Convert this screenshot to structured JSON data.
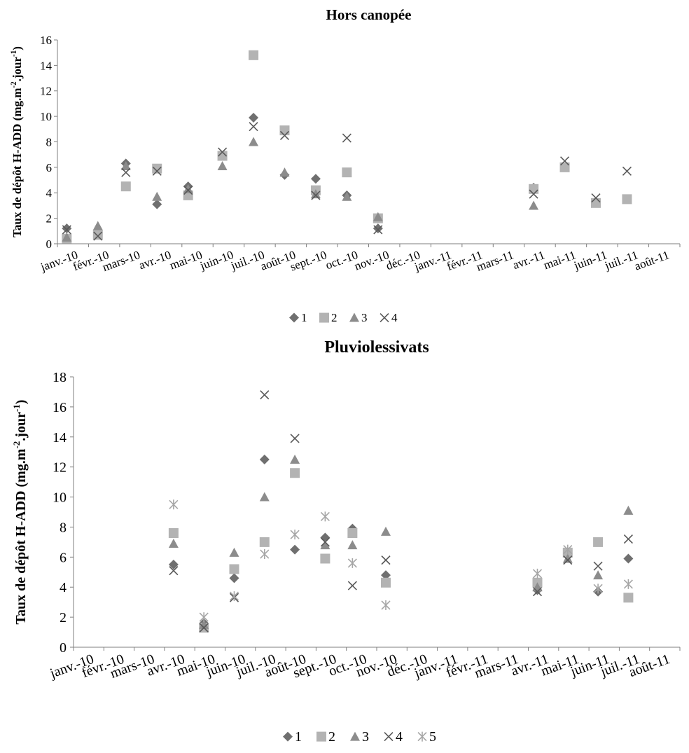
{
  "chart_data": [
    {
      "type": "scatter",
      "title": "Hors canopée",
      "ylabel": "Taux de dépôt H-ADD (mg.m-2.jour-1)",
      "ylabel_parts": [
        "Taux de dépôt H-ADD (mg.m",
        "-2",
        ".jour",
        "-1",
        ")"
      ],
      "ylim": [
        0,
        16
      ],
      "yticks": [
        0,
        2,
        4,
        6,
        8,
        10,
        12,
        14,
        16
      ],
      "grid": false,
      "legend_position": "bottom",
      "x_categories": [
        "janv.-10",
        "févr.-10",
        "mars-10",
        "avr.-10",
        "mai-10",
        "juin-10",
        "juil.-10",
        "août-10",
        "sept.-10",
        "oct.-10",
        "nov.-10",
        "déc.-10",
        "janv.-11",
        "févr.-11",
        "mars-11",
        "avr.-11",
        "mai-11",
        "juin-11",
        "juil.-11",
        "août-11"
      ],
      "series": [
        {
          "name": "1",
          "marker": "diamond",
          "color": "#6f6f6f",
          "points": [
            [
              0.3,
              1.2
            ],
            [
              2.2,
              6.3
            ],
            [
              3.2,
              3.1
            ],
            [
              4.2,
              4.5
            ],
            [
              6.3,
              9.9
            ],
            [
              7.3,
              5.4
            ],
            [
              8.3,
              5.1
            ],
            [
              9.3,
              3.8
            ],
            [
              10.3,
              1.2
            ],
            [
              15.3,
              4.4
            ]
          ]
        },
        {
          "name": "2",
          "marker": "square",
          "color": "#b3b3b3",
          "points": [
            [
              0.3,
              0.4
            ],
            [
              1.3,
              0.7
            ],
            [
              2.2,
              4.5
            ],
            [
              3.2,
              5.9
            ],
            [
              4.2,
              3.8
            ],
            [
              5.3,
              6.9
            ],
            [
              6.3,
              14.8
            ],
            [
              7.3,
              8.9
            ],
            [
              8.3,
              4.2
            ],
            [
              9.3,
              5.6
            ],
            [
              10.3,
              2.0
            ],
            [
              15.3,
              4.3
            ],
            [
              16.3,
              6.0
            ],
            [
              17.3,
              3.2
            ],
            [
              18.3,
              3.5
            ]
          ]
        },
        {
          "name": "3",
          "marker": "triangle",
          "color": "#8c8c8c",
          "points": [
            [
              0.3,
              0.5
            ],
            [
              1.3,
              1.4
            ],
            [
              2.2,
              6.1
            ],
            [
              3.2,
              3.7
            ],
            [
              4.2,
              4.3
            ],
            [
              5.3,
              6.1
            ],
            [
              6.3,
              8.0
            ],
            [
              7.3,
              5.6
            ],
            [
              8.3,
              3.9
            ],
            [
              9.3,
              3.7
            ],
            [
              10.3,
              2.1
            ],
            [
              15.3,
              3.0
            ]
          ]
        },
        {
          "name": "4",
          "marker": "x",
          "color": "#595959",
          "points": [
            [
              0.3,
              1.1
            ],
            [
              1.3,
              0.6
            ],
            [
              2.2,
              5.6
            ],
            [
              3.2,
              5.7
            ],
            [
              4.2,
              4.2
            ],
            [
              5.3,
              7.2
            ],
            [
              6.3,
              9.2
            ],
            [
              7.3,
              8.5
            ],
            [
              8.3,
              3.8
            ],
            [
              9.3,
              8.3
            ],
            [
              10.3,
              1.1
            ],
            [
              15.3,
              3.9
            ],
            [
              16.3,
              6.5
            ],
            [
              17.3,
              3.6
            ],
            [
              18.3,
              5.7
            ]
          ]
        }
      ]
    },
    {
      "type": "scatter",
      "title": "Pluviolessivats",
      "ylabel": "Taux de dépôt H-ADD (mg.m-2.jour-1)",
      "ylabel_parts": [
        "Taux de dépôt H-ADD (mg.m",
        "-2",
        ".jour",
        "-1",
        ")"
      ],
      "ylim": [
        0,
        18
      ],
      "yticks": [
        0,
        2,
        4,
        6,
        8,
        10,
        12,
        14,
        16,
        18
      ],
      "grid": false,
      "legend_position": "bottom",
      "x_categories": [
        "janv.-10",
        "févr.-10",
        "mars-10",
        "avr.-10",
        "mai-10",
        "juin-10",
        "juil.-10",
        "août-10",
        "sept.-10",
        "oct.-10",
        "nov.-10",
        "déc.-10",
        "janv.-11",
        "févr.-11",
        "mars-11",
        "avr.-11",
        "mai-11",
        "juin-11",
        "juil.-11",
        "août-11"
      ],
      "series": [
        {
          "name": "1",
          "marker": "diamond",
          "color": "#6f6f6f",
          "points": [
            [
              3.3,
              5.5
            ],
            [
              4.3,
              1.6
            ],
            [
              5.3,
              4.6
            ],
            [
              6.3,
              12.5
            ],
            [
              7.3,
              6.5
            ],
            [
              8.3,
              7.3
            ],
            [
              9.2,
              7.9
            ],
            [
              10.3,
              4.8
            ],
            [
              15.3,
              3.8
            ],
            [
              16.3,
              6.2
            ],
            [
              17.3,
              3.7
            ],
            [
              18.3,
              5.9
            ]
          ]
        },
        {
          "name": "2",
          "marker": "square",
          "color": "#b3b3b3",
          "points": [
            [
              3.3,
              7.6
            ],
            [
              4.3,
              1.3
            ],
            [
              5.3,
              5.2
            ],
            [
              6.3,
              7.0
            ],
            [
              7.3,
              11.6
            ],
            [
              8.3,
              5.9
            ],
            [
              9.2,
              7.6
            ],
            [
              10.3,
              4.3
            ],
            [
              15.3,
              4.3
            ],
            [
              16.3,
              6.3
            ],
            [
              17.3,
              7.0
            ],
            [
              18.3,
              3.3
            ]
          ]
        },
        {
          "name": "3",
          "marker": "triangle",
          "color": "#8c8c8c",
          "points": [
            [
              3.3,
              6.9
            ],
            [
              4.3,
              1.5
            ],
            [
              5.3,
              6.3
            ],
            [
              6.3,
              10.0
            ],
            [
              7.3,
              12.5
            ],
            [
              8.3,
              6.8
            ],
            [
              9.2,
              6.8
            ],
            [
              10.3,
              7.7
            ],
            [
              15.3,
              4.0
            ],
            [
              16.3,
              5.9
            ],
            [
              17.3,
              4.8
            ],
            [
              18.3,
              9.1
            ]
          ]
        },
        {
          "name": "4",
          "marker": "x",
          "color": "#595959",
          "points": [
            [
              3.3,
              5.1
            ],
            [
              4.3,
              1.3
            ],
            [
              5.3,
              3.3
            ],
            [
              6.3,
              16.8
            ],
            [
              7.3,
              13.9
            ],
            [
              8.3,
              7.0
            ],
            [
              9.2,
              4.1
            ],
            [
              10.3,
              5.8
            ],
            [
              15.3,
              3.7
            ],
            [
              16.3,
              5.8
            ],
            [
              17.3,
              5.4
            ],
            [
              18.3,
              7.2
            ]
          ]
        },
        {
          "name": "5",
          "marker": "star",
          "color": "#a6a6a6",
          "points": [
            [
              3.3,
              9.5
            ],
            [
              4.3,
              2.0
            ],
            [
              5.3,
              3.4
            ],
            [
              6.3,
              6.2
            ],
            [
              7.3,
              7.5
            ],
            [
              8.3,
              8.7
            ],
            [
              9.2,
              5.6
            ],
            [
              10.3,
              2.8
            ],
            [
              15.3,
              4.9
            ],
            [
              16.3,
              6.5
            ],
            [
              17.3,
              3.9
            ],
            [
              18.3,
              4.2
            ]
          ]
        }
      ]
    }
  ]
}
